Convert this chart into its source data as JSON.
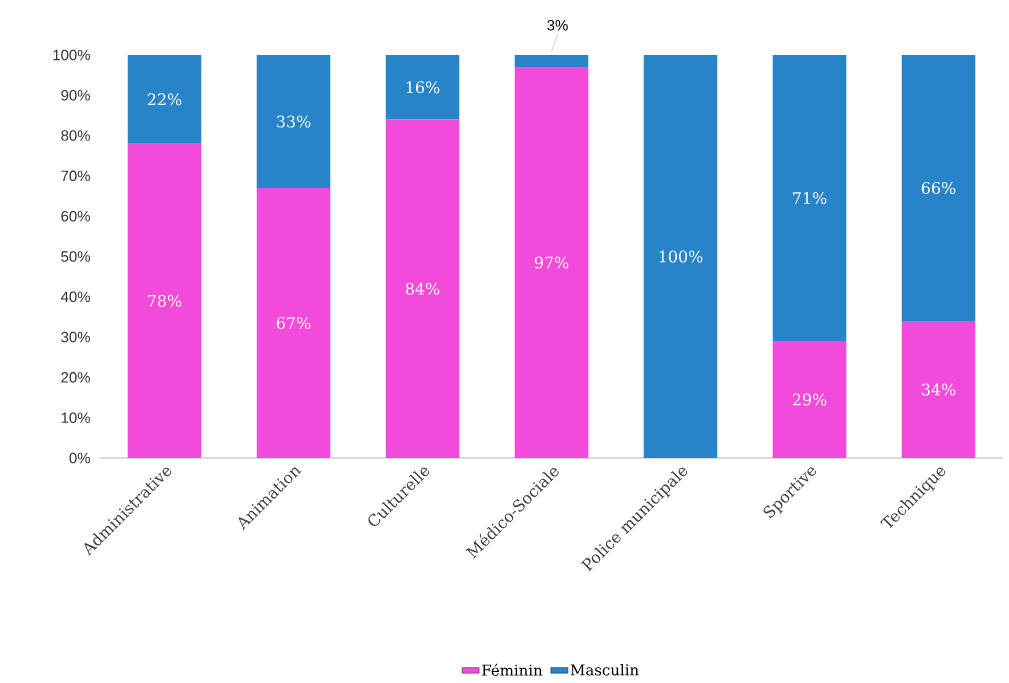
{
  "chart_data": {
    "type": "bar",
    "stacked": true,
    "categories": [
      "Administrative",
      "Animation",
      "Culturelle",
      "Médico-Sociale",
      "Police municipale",
      "Sportive",
      "Technique"
    ],
    "series": [
      {
        "name": "Féminin",
        "color": "#f24bdb",
        "values": [
          78,
          67,
          84,
          97,
          0,
          29,
          34
        ],
        "value_labels": [
          "78%",
          "67%",
          "84%",
          "97%",
          null,
          "29%",
          "34%"
        ]
      },
      {
        "name": "Masculin",
        "color": "#2784c8",
        "values": [
          22,
          33,
          16,
          3,
          100,
          71,
          66
        ],
        "value_labels": [
          "22%",
          "33%",
          "16%",
          "3%",
          "100%",
          "71%",
          "66%"
        ]
      }
    ],
    "ylim": [
      0,
      100
    ],
    "yticks": [
      {
        "value": 0,
        "label": "0%"
      },
      {
        "value": 10,
        "label": "10%"
      },
      {
        "value": 20,
        "label": "20%"
      },
      {
        "value": 30,
        "label": "30%"
      },
      {
        "value": 40,
        "label": "40%"
      },
      {
        "value": 50,
        "label": "50%"
      },
      {
        "value": 60,
        "label": "60%"
      },
      {
        "value": 70,
        "label": "70%"
      },
      {
        "value": 80,
        "label": "80%"
      },
      {
        "value": 90,
        "label": "90%"
      },
      {
        "value": 100,
        "label": "100%"
      }
    ],
    "legend": "bottom"
  }
}
